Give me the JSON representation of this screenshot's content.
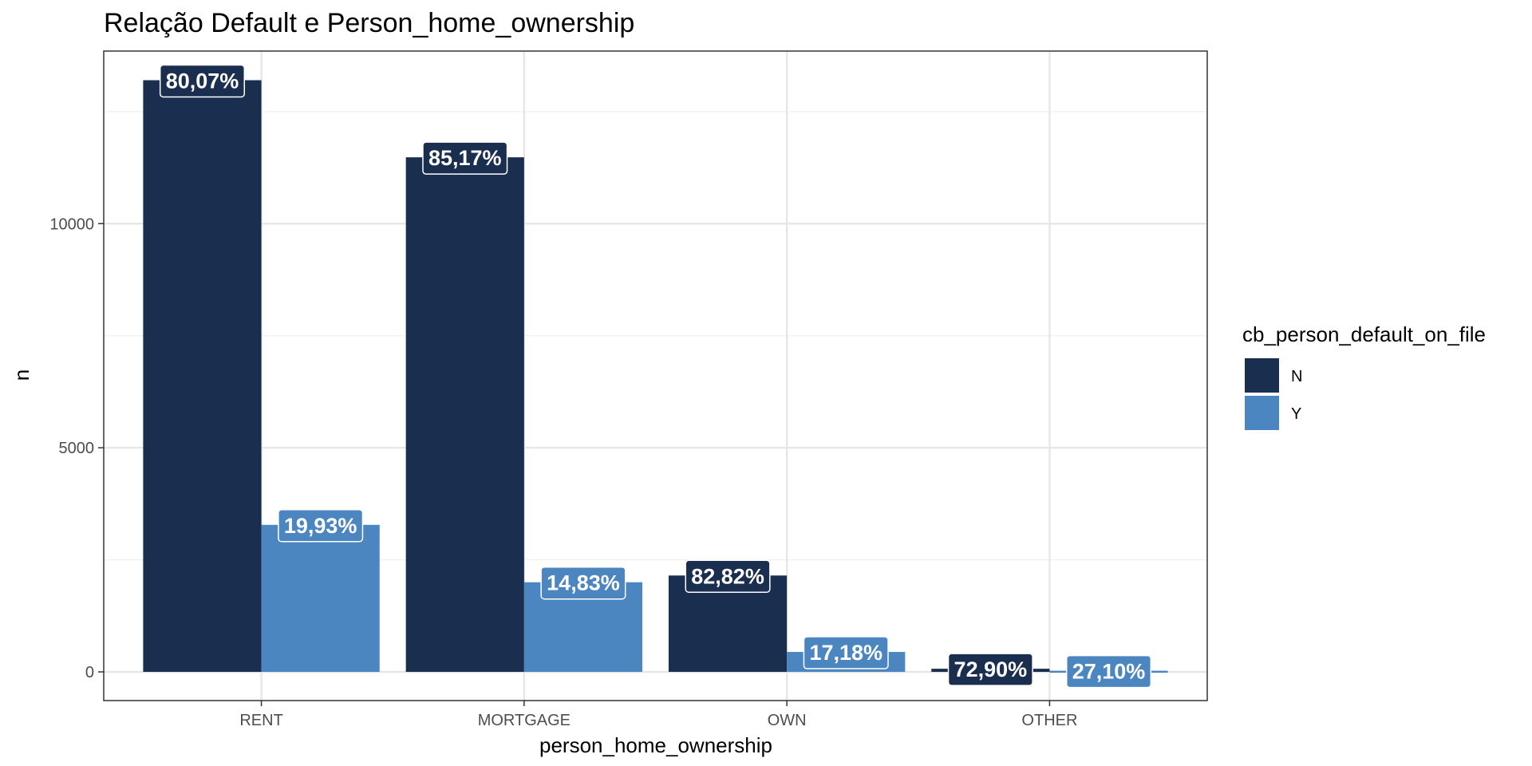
{
  "chart_data": {
    "type": "bar",
    "title": "Relação Default e Person_home_ownership",
    "xlabel": "person_home_ownership",
    "ylabel": "n",
    "categories": [
      "RENT",
      "MORTGAGE",
      "OWN",
      "OTHER"
    ],
    "series": [
      {
        "name": "N",
        "color": "#1a2e4f",
        "values": [
          13200,
          11480,
          2150,
          70
        ],
        "labels": [
          "80,07%",
          "85,17%",
          "82,82%",
          "72,90%"
        ]
      },
      {
        "name": "Y",
        "color": "#4c86c0",
        "values": [
          3280,
          2000,
          445,
          26
        ],
        "labels": [
          "19,93%",
          "14,83%",
          "17,18%",
          "27,10%"
        ]
      }
    ],
    "yticks": [
      0,
      5000,
      10000
    ],
    "ytick_labels": [
      "0",
      "5000",
      "10000"
    ],
    "ylim": [
      -640,
      13850
    ],
    "grid": true,
    "legend": {
      "title": "cb_person_default_on_file",
      "position": "right"
    }
  }
}
